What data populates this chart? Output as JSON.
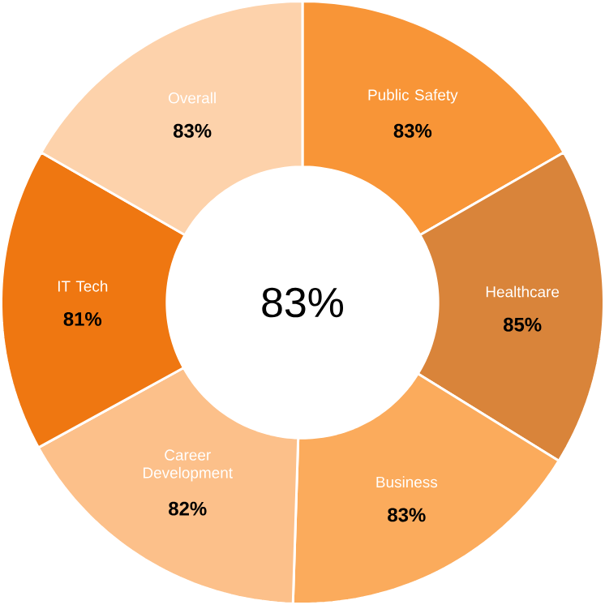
{
  "chart_data": {
    "type": "donut",
    "categories": [
      "Public Safety",
      "Healthcare",
      "Business",
      "Career Development",
      "IT Tech",
      "Overall"
    ],
    "values": [
      83,
      85,
      83,
      82,
      81,
      83
    ],
    "value_labels": [
      "83%",
      "85%",
      "83%",
      "82%",
      "81%",
      "83%"
    ],
    "colors": [
      "#f89537",
      "#d9843a",
      "#fbab5c",
      "#fcc08a",
      "#ef7711",
      "#fdd2ab"
    ],
    "annotations": [
      "83%"
    ]
  }
}
